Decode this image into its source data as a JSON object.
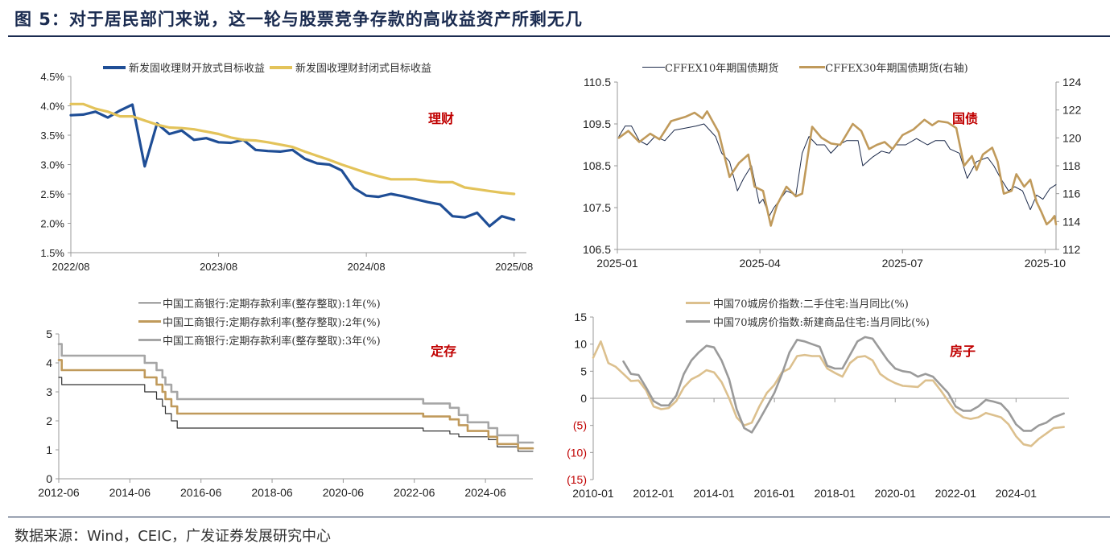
{
  "title": "图 5：对于居民部门来说，这一轮与股票竞争存款的高收益资产所剩无几",
  "source": "数据来源：Wind，CEIC，广发证券发展研究中心",
  "chart_data": [
    {
      "type": "line",
      "annotation": "理财",
      "xlim": [
        "2022-08",
        "2025-09"
      ],
      "xticks": [
        "2022-08",
        "2023-08",
        "2024-08",
        "2025-08"
      ],
      "xtick_labels": [
        "2022/08",
        "2023/08",
        "2024/08",
        "2025/08"
      ],
      "ylim": [
        1.5,
        4.5
      ],
      "yticks": [
        1.5,
        2.0,
        2.5,
        3.0,
        3.5,
        4.0,
        4.5
      ],
      "ytick_labels": [
        "1.5%",
        "2.0%",
        "2.5%",
        "3.0%",
        "3.5%",
        "4.0%",
        "4.5%"
      ],
      "grid": false,
      "legend": "top",
      "x": [
        "2022-08",
        "2022-09",
        "2022-10",
        "2022-11",
        "2022-12",
        "2023-01",
        "2023-02",
        "2023-03",
        "2023-04",
        "2023-05",
        "2023-06",
        "2023-07",
        "2023-08",
        "2023-09",
        "2023-10",
        "2023-11",
        "2023-12",
        "2024-01",
        "2024-02",
        "2024-03",
        "2024-04",
        "2024-05",
        "2024-06",
        "2024-07",
        "2024-08",
        "2024-09",
        "2024-10",
        "2024-11",
        "2024-12",
        "2025-01",
        "2025-02",
        "2025-03",
        "2025-04",
        "2025-05",
        "2025-06",
        "2025-07",
        "2025-08"
      ],
      "series": [
        {
          "name": "新发固收理财开放式目标收益",
          "color": "#1f4e96",
          "values": [
            3.84,
            3.85,
            3.9,
            3.8,
            3.92,
            4.02,
            2.97,
            3.7,
            3.52,
            3.58,
            3.42,
            3.45,
            3.38,
            3.37,
            3.42,
            3.25,
            3.23,
            3.22,
            3.25,
            3.1,
            3.02,
            3.0,
            2.9,
            2.6,
            2.47,
            2.45,
            2.5,
            2.46,
            2.41,
            2.36,
            2.32,
            2.12,
            2.1,
            2.18,
            1.95,
            2.12,
            2.06
          ]
        },
        {
          "name": "新发固收理财封闭式目标收益",
          "color": "#e3c35a",
          "values": [
            4.03,
            4.03,
            3.95,
            3.9,
            3.82,
            3.82,
            3.75,
            3.68,
            3.63,
            3.62,
            3.6,
            3.56,
            3.52,
            3.46,
            3.42,
            3.41,
            3.38,
            3.34,
            3.3,
            3.22,
            3.15,
            3.08,
            3.0,
            2.93,
            2.86,
            2.8,
            2.75,
            2.75,
            2.75,
            2.72,
            2.7,
            2.7,
            2.61,
            2.58,
            2.55,
            2.52,
            2.5
          ]
        }
      ]
    },
    {
      "type": "line",
      "annotation": "国债",
      "xlim": [
        "2025-01-01",
        "2025-10-08"
      ],
      "xticks": [
        "2025-01-01",
        "2025-04-01",
        "2025-07-01",
        "2025-10-01"
      ],
      "xtick_labels": [
        "2025-01",
        "2025-04",
        "2025-07",
        "2025-10"
      ],
      "ylim": [
        106.5,
        110.5
      ],
      "yticks": [
        106.5,
        107.5,
        108.5,
        109.5,
        110.5
      ],
      "ytick_labels": [
        "106.5",
        "107.5",
        "108.5",
        "109.5",
        "110.5"
      ],
      "y2lim": [
        112,
        124
      ],
      "y2ticks": [
        112,
        114,
        116,
        118,
        120,
        122,
        124
      ],
      "y2tick_labels": [
        "112",
        "114",
        "116",
        "118",
        "120",
        "122",
        "124"
      ],
      "grid": false,
      "legend": "top",
      "series": [
        {
          "name": "CFFEX10年期国债期货",
          "color": "#1c2a4a",
          "axis": "left",
          "x": [
            "2025-01-02",
            "2025-01-06",
            "2025-01-10",
            "2025-01-15",
            "2025-01-20",
            "2025-01-25",
            "2025-02-01",
            "2025-02-07",
            "2025-02-14",
            "2025-02-21",
            "2025-02-26",
            "2025-03-03",
            "2025-03-07",
            "2025-03-12",
            "2025-03-17",
            "2025-03-21",
            "2025-03-26",
            "2025-03-31",
            "2025-04-03",
            "2025-04-07",
            "2025-04-10",
            "2025-04-14",
            "2025-04-18",
            "2025-04-24",
            "2025-04-28",
            "2025-05-02",
            "2025-05-07",
            "2025-05-12",
            "2025-05-16",
            "2025-05-21",
            "2025-05-26",
            "2025-06-03",
            "2025-06-06",
            "2025-06-12",
            "2025-06-18",
            "2025-06-23",
            "2025-06-27",
            "2025-07-03",
            "2025-07-10",
            "2025-07-17",
            "2025-07-22",
            "2025-07-28",
            "2025-08-01",
            "2025-08-07",
            "2025-08-12",
            "2025-08-18",
            "2025-08-25",
            "2025-08-29",
            "2025-09-03",
            "2025-09-08",
            "2025-09-12",
            "2025-09-17",
            "2025-09-22",
            "2025-09-26",
            "2025-09-30",
            "2025-10-04",
            "2025-10-08"
          ],
          "values": [
            109.2,
            109.45,
            109.45,
            109.1,
            109.0,
            109.2,
            109.1,
            109.35,
            109.4,
            109.45,
            109.5,
            109.2,
            108.8,
            108.6,
            107.9,
            108.2,
            108.5,
            107.6,
            107.7,
            107.3,
            107.5,
            107.7,
            107.9,
            107.8,
            108.8,
            109.2,
            109.0,
            109.0,
            108.8,
            109.0,
            109.1,
            109.1,
            108.5,
            108.7,
            108.85,
            108.8,
            109.0,
            109.0,
            109.15,
            109.0,
            109.1,
            109.1,
            108.9,
            108.8,
            108.2,
            108.6,
            108.7,
            108.5,
            108.2,
            107.9,
            108.0,
            107.9,
            107.45,
            107.8,
            107.7,
            107.95,
            108.05
          ]
        },
        {
          "name": "CFFEX30年期国债期货(右轴)",
          "color": "#c09a5b",
          "axis": "right",
          "x": [
            "2025-01-02",
            "2025-01-08",
            "2025-01-15",
            "2025-01-22",
            "2025-01-28",
            "2025-02-05",
            "2025-02-14",
            "2025-02-20",
            "2025-02-25",
            "2025-02-28",
            "2025-03-05",
            "2025-03-12",
            "2025-03-18",
            "2025-03-24",
            "2025-03-28",
            "2025-04-03",
            "2025-04-08",
            "2025-04-12",
            "2025-04-18",
            "2025-04-24",
            "2025-04-28",
            "2025-05-04",
            "2025-05-10",
            "2025-05-16",
            "2025-05-22",
            "2025-05-30",
            "2025-06-05",
            "2025-06-10",
            "2025-06-15",
            "2025-06-20",
            "2025-06-25",
            "2025-07-01",
            "2025-07-08",
            "2025-07-15",
            "2025-07-20",
            "2025-07-24",
            "2025-07-30",
            "2025-08-05",
            "2025-08-10",
            "2025-08-15",
            "2025-08-18",
            "2025-08-22",
            "2025-08-28",
            "2025-09-01",
            "2025-09-05",
            "2025-09-10",
            "2025-09-13",
            "2025-09-18",
            "2025-09-22",
            "2025-09-26",
            "2025-09-29",
            "2025-10-02",
            "2025-10-05",
            "2025-10-07",
            "2025-10-08"
          ],
          "values": [
            120,
            120.5,
            119.7,
            120.3,
            119.9,
            121.2,
            121.5,
            121.8,
            121.4,
            121.9,
            120.4,
            117.2,
            118.2,
            118.8,
            116.5,
            116.2,
            113.7,
            115.2,
            116.5,
            115.8,
            116.0,
            120.8,
            120.0,
            119.6,
            119.5,
            121.0,
            120.5,
            119.2,
            119.5,
            119.7,
            119.2,
            120.2,
            120.6,
            121.3,
            120.9,
            121.2,
            121.1,
            120.7,
            118.0,
            118.7,
            117.7,
            118.8,
            119.3,
            118.3,
            116.0,
            116.2,
            117.4,
            116.5,
            117.0,
            115.4,
            114.7,
            113.8,
            114.1,
            114.4,
            113.8
          ]
        }
      ]
    },
    {
      "type": "line",
      "annotation": "定存",
      "step": true,
      "xlim": [
        "2012-06",
        "2025-10"
      ],
      "xticks": [
        "2012-06",
        "2014-06",
        "2016-06",
        "2018-06",
        "2020-06",
        "2022-06",
        "2024-06"
      ],
      "xtick_labels": [
        "2012-06",
        "2014-06",
        "2016-06",
        "2018-06",
        "2020-06",
        "2022-06",
        "2024-06"
      ],
      "ylim": [
        0,
        5
      ],
      "yticks": [
        0,
        1,
        2,
        3,
        4,
        5
      ],
      "ytick_labels": [
        "0",
        "1",
        "2",
        "3",
        "4",
        "5"
      ],
      "grid": false,
      "legend": "top",
      "x": [
        "2012-06",
        "2012-07",
        "2014-11",
        "2015-03",
        "2015-05",
        "2015-06",
        "2015-08",
        "2015-10",
        "2022-09",
        "2023-06",
        "2023-09",
        "2023-12",
        "2024-07",
        "2024-10",
        "2025-05",
        "2025-10"
      ],
      "series": [
        {
          "name": "中国工商银行:定期存款利率(整存整取):1年(%)",
          "color": "#333333",
          "values": [
            3.5,
            3.25,
            3.0,
            2.75,
            2.5,
            2.25,
            2.0,
            1.75,
            1.65,
            1.55,
            1.45,
            1.45,
            1.35,
            1.1,
            0.95,
            0.95
          ]
        },
        {
          "name": "中国工商银行:定期存款利率(整存整取):2年(%)",
          "color": "#c09a5b",
          "values": [
            4.1,
            3.75,
            3.5,
            3.25,
            3.0,
            2.75,
            2.5,
            2.25,
            2.15,
            2.05,
            1.85,
            1.65,
            1.45,
            1.2,
            1.05,
            1.05
          ]
        },
        {
          "name": "中国工商银行:定期存款利率(整存整取):3年(%)",
          "color": "#a6a6a6",
          "values": [
            4.65,
            4.25,
            4.0,
            3.75,
            3.5,
            3.25,
            3.0,
            2.75,
            2.6,
            2.45,
            2.2,
            1.95,
            1.75,
            1.5,
            1.25,
            1.25
          ]
        }
      ]
    },
    {
      "type": "line",
      "annotation": "房子",
      "xlim": [
        "2010-01",
        "2025-10"
      ],
      "xticks": [
        "2010-01",
        "2012-01",
        "2014-01",
        "2016-01",
        "2018-01",
        "2020-01",
        "2022-01",
        "2024-01"
      ],
      "xtick_labels": [
        "2010-01",
        "2012-01",
        "2014-01",
        "2016-01",
        "2018-01",
        "2020-01",
        "2022-01",
        "2024-01"
      ],
      "ylim": [
        -15,
        15
      ],
      "yticks": [
        -15,
        -10,
        -5,
        0,
        5,
        10,
        15
      ],
      "ytick_labels": [
        "(15)",
        "(10)",
        "(5)",
        "0",
        "5",
        "10",
        "15"
      ],
      "negative_label_color": "#c00000",
      "grid": false,
      "legend": "top",
      "series": [
        {
          "name": "中国70城房价指数:二手住宅:当月同比(%)",
          "color": "#dcc08e",
          "x": [
            "2010-01",
            "2010-04",
            "2010-07",
            "2010-10",
            "2011-01",
            "2011-04",
            "2011-07",
            "2011-10",
            "2012-01",
            "2012-04",
            "2012-07",
            "2012-10",
            "2013-01",
            "2013-04",
            "2013-07",
            "2013-10",
            "2014-01",
            "2014-04",
            "2014-07",
            "2014-10",
            "2015-01",
            "2015-04",
            "2015-07",
            "2015-10",
            "2016-01",
            "2016-04",
            "2016-07",
            "2016-10",
            "2017-01",
            "2017-04",
            "2017-07",
            "2017-10",
            "2018-01",
            "2018-04",
            "2018-07",
            "2018-10",
            "2019-01",
            "2019-04",
            "2019-07",
            "2019-10",
            "2020-01",
            "2020-04",
            "2020-07",
            "2020-10",
            "2021-01",
            "2021-04",
            "2021-07",
            "2021-10",
            "2022-01",
            "2022-04",
            "2022-07",
            "2022-10",
            "2023-01",
            "2023-04",
            "2023-07",
            "2023-10",
            "2024-01",
            "2024-04",
            "2024-07",
            "2024-10",
            "2025-01",
            "2025-04",
            "2025-08"
          ],
          "values": [
            7.5,
            10.5,
            6.5,
            5.8,
            4.5,
            3.2,
            3.3,
            1.5,
            -1.5,
            -2.0,
            -1.8,
            -0.5,
            2.0,
            3.5,
            4.2,
            5.2,
            4.8,
            3.0,
            0,
            -3.5,
            -5.0,
            -4.5,
            -1.5,
            1.0,
            2.5,
            4.8,
            5.5,
            7.8,
            8.0,
            7.8,
            7.8,
            5.5,
            4.7,
            4.0,
            6.5,
            7.6,
            7.8,
            7.0,
            4.5,
            3.5,
            2.8,
            2.3,
            2.2,
            2.1,
            3.3,
            3.3,
            1.5,
            -0.5,
            -2.5,
            -3.5,
            -3.8,
            -3.5,
            -2.7,
            -3.1,
            -3.5,
            -4.8,
            -7.0,
            -8.5,
            -8.8,
            -7.5,
            -6.5,
            -5.5,
            -5.3
          ]
        },
        {
          "name": "中国70城房价指数:新建商品住宅:当月同比(%)",
          "color": "#9a9a9a",
          "x": [
            "2011-01",
            "2011-04",
            "2011-07",
            "2011-10",
            "2012-01",
            "2012-04",
            "2012-07",
            "2012-10",
            "2013-01",
            "2013-04",
            "2013-07",
            "2013-10",
            "2014-01",
            "2014-04",
            "2014-07",
            "2014-10",
            "2015-01",
            "2015-04",
            "2015-07",
            "2015-10",
            "2016-01",
            "2016-04",
            "2016-07",
            "2016-10",
            "2017-01",
            "2017-04",
            "2017-07",
            "2017-10",
            "2018-01",
            "2018-04",
            "2018-07",
            "2018-10",
            "2019-01",
            "2019-04",
            "2019-07",
            "2019-10",
            "2020-01",
            "2020-04",
            "2020-07",
            "2020-10",
            "2021-01",
            "2021-04",
            "2021-07",
            "2021-10",
            "2022-01",
            "2022-04",
            "2022-07",
            "2022-10",
            "2023-01",
            "2023-04",
            "2023-07",
            "2023-10",
            "2024-01",
            "2024-04",
            "2024-07",
            "2024-10",
            "2025-01",
            "2025-04",
            "2025-08"
          ],
          "values": [
            6.8,
            4.5,
            4.3,
            2.0,
            -0.5,
            -1.3,
            -1.3,
            0.5,
            4.5,
            7.0,
            8.5,
            9.7,
            9.4,
            7.0,
            3.5,
            -2.0,
            -5.5,
            -6.3,
            -4.0,
            -1.5,
            1.0,
            4.5,
            8.5,
            10.8,
            10.5,
            10.0,
            9.5,
            6.0,
            5.5,
            5.5,
            8.0,
            10.5,
            11.3,
            11.0,
            9.0,
            7.0,
            5.5,
            5.0,
            4.8,
            4.0,
            4.5,
            4.0,
            2.5,
            1.0,
            -1.5,
            -2.3,
            -2.3,
            -1.5,
            -0.3,
            -0.6,
            -1.0,
            -2.5,
            -4.8,
            -6.0,
            -6.0,
            -5.0,
            -4.5,
            -3.5,
            -2.8
          ]
        }
      ]
    }
  ]
}
